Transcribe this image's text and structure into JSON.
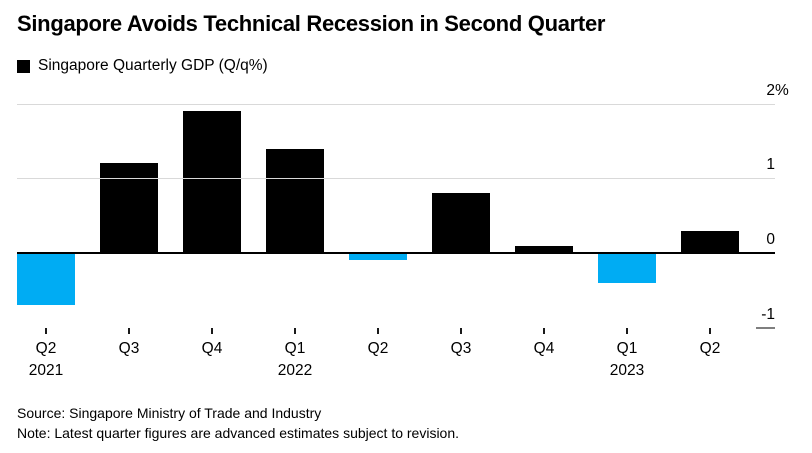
{
  "header": {
    "title": "Singapore Avoids Technical Recession in Second Quarter"
  },
  "legend": {
    "swatch_color": "#000000",
    "label": "Singapore Quarterly GDP (Q/q%)"
  },
  "chart_data": {
    "type": "bar",
    "title": "Singapore Quarterly GDP (Q/q%)",
    "categories": [
      "Q2 2021",
      "Q3 2021",
      "Q4 2021",
      "Q1 2022",
      "Q2 2022",
      "Q3 2022",
      "Q4 2022",
      "Q1 2023",
      "Q2 2023"
    ],
    "x_tick_labels": [
      "Q2",
      "Q3",
      "Q4",
      "Q1",
      "Q2",
      "Q3",
      "Q4",
      "Q1",
      "Q2"
    ],
    "year_markers": [
      {
        "index": 0,
        "label": "2021"
      },
      {
        "index": 3,
        "label": "2022"
      },
      {
        "index": 7,
        "label": "2023"
      }
    ],
    "values": [
      -0.7,
      1.2,
      1.9,
      1.4,
      -0.1,
      0.8,
      0.1,
      -0.4,
      0.3
    ],
    "unit": "%",
    "ylim": [
      -1,
      2
    ],
    "yticks": [
      {
        "value": 2,
        "label": "2",
        "suffix": "%",
        "line": "grid"
      },
      {
        "value": 1,
        "label": "1",
        "line": "grid"
      },
      {
        "value": 0,
        "label": "0",
        "line": "axis"
      },
      {
        "value": -1,
        "label": "-1",
        "line": "dash"
      }
    ],
    "positive_color": "#000000",
    "negative_color": "#00acf3",
    "grid_color": "#d9d9d9",
    "axis_color": "#000000",
    "dash_color": "#7f7f7f",
    "grid": true,
    "legend_position": "top-left",
    "value_axis_side": "right"
  },
  "footer": {
    "source": "Source: Singapore Ministry of Trade and Industry",
    "note": "Note: Latest quarter figures are advanced estimates subject to revision."
  }
}
